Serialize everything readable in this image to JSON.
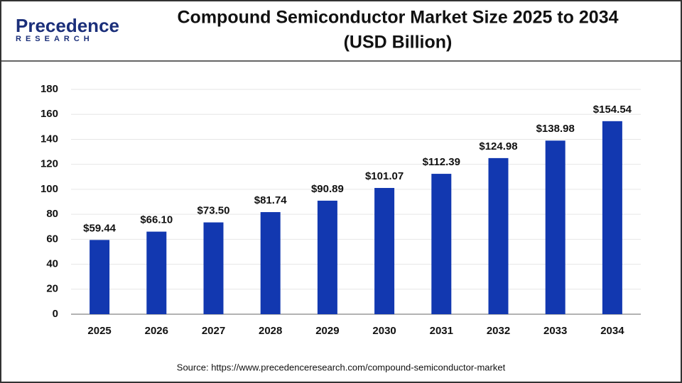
{
  "logo": {
    "name": "Precedence",
    "tagline": "RESEARCH"
  },
  "chart_data": {
    "type": "bar",
    "title": "Compound Semiconductor Market Size 2025 to 2034",
    "subtitle": "(USD Billion)",
    "categories": [
      "2025",
      "2026",
      "2027",
      "2028",
      "2029",
      "2030",
      "2031",
      "2032",
      "2033",
      "2034"
    ],
    "values": [
      59.44,
      66.1,
      73.5,
      81.74,
      90.89,
      101.07,
      112.39,
      124.98,
      138.98,
      154.54
    ],
    "value_labels": [
      "$59.44",
      "$66.10",
      "$73.50",
      "$81.74",
      "$90.89",
      "$101.07",
      "$112.39",
      "$124.98",
      "$138.98",
      "$154.54"
    ],
    "color": "#1238b0",
    "ylim": [
      0,
      180
    ],
    "yticks": [
      0,
      20,
      40,
      60,
      80,
      100,
      120,
      140,
      160,
      180
    ],
    "grid": true,
    "source": "Source: https://www.precedenceresearch.com/compound-semiconductor-market"
  }
}
